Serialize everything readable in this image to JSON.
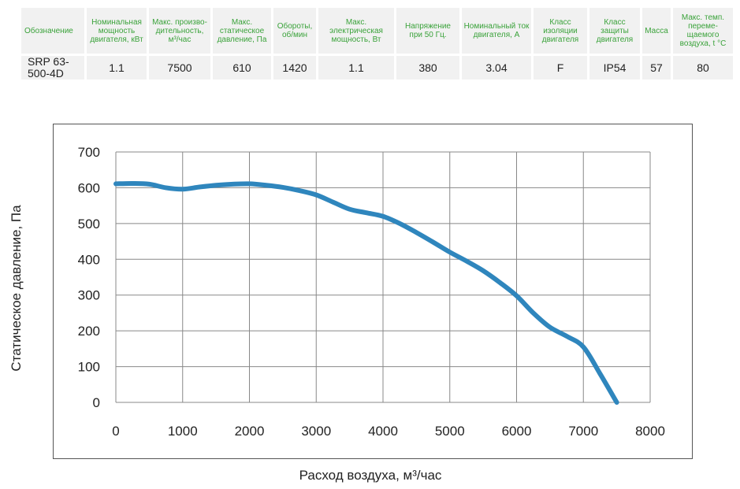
{
  "table": {
    "headers": [
      "Обозначение",
      "Номинальная мощность двигателя, кВт",
      "Макс. произво- дительность, м³/час",
      "Макс. статическое давление, Па",
      "Обороты, об/мин",
      "Макс. электрическая мощность, Вт",
      "Напряжение при 50 Гц.",
      "Номинальный ток двигателя, А",
      "Класс изоляции двигателя",
      "Класс защиты двигателя",
      "Масса",
      "Макс. темп. переме- щаемого воздуха, t °C"
    ],
    "row": [
      "SRP 63-500-4D",
      "1.1",
      "7500",
      "610",
      "1420",
      "1.1",
      "380",
      "3.04",
      "F",
      "IP54",
      "57",
      "80"
    ]
  },
  "colors": {
    "header_text": "#3aa23a",
    "cell_bg": "#f1f1f1",
    "curve": "#2f86bd",
    "grid": "#888888"
  },
  "chart_data": {
    "type": "line",
    "xlabel": "Расход воздуха, м³/час",
    "ylabel": "Статическое давление, Па",
    "xlim": [
      0,
      8000
    ],
    "ylim": [
      0,
      700
    ],
    "x_ticks": [
      "0",
      "1000",
      "2000",
      "3000",
      "4000",
      "5000",
      "6000",
      "7000",
      "8000"
    ],
    "y_ticks": [
      "0",
      "100",
      "200",
      "300",
      "400",
      "500",
      "600",
      "700"
    ],
    "grid": true,
    "series": [
      {
        "x": [
          0,
          250,
          500,
          750,
          1000,
          1250,
          1500,
          1750,
          2000,
          2250,
          2500,
          2750,
          3000,
          3250,
          3500,
          3750,
          4000,
          4250,
          4500,
          4750,
          5000,
          5250,
          5500,
          5750,
          6000,
          6250,
          6500,
          6750,
          7000,
          7250,
          7500
        ],
        "y": [
          611,
          612,
          610,
          600,
          596,
          602,
          607,
          610,
          611,
          607,
          601,
          592,
          580,
          560,
          540,
          530,
          520,
          500,
          475,
          448,
          420,
          395,
          368,
          335,
          298,
          250,
          210,
          185,
          155,
          80,
          0
        ]
      }
    ]
  }
}
